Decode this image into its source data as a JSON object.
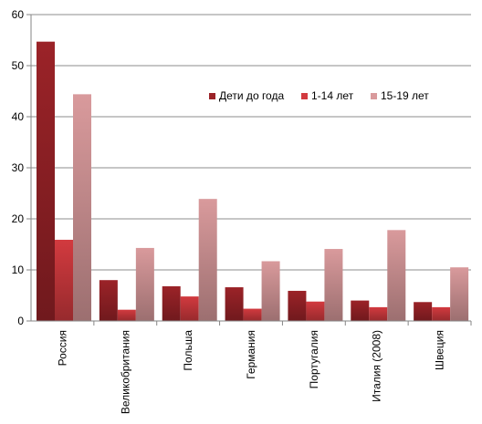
{
  "chart_data": {
    "type": "bar",
    "title": "",
    "xlabel": "",
    "ylabel": "",
    "ylim": [
      0,
      60
    ],
    "yticks": [
      0,
      10,
      20,
      30,
      40,
      50,
      60
    ],
    "grid": "horizontal",
    "legend_position": "top-right",
    "categories": [
      "Россия",
      "Великобритания",
      "Польша",
      "Германия",
      "Португалия",
      "Италия (2008)",
      "Швеция"
    ],
    "series": [
      {
        "name": "Дети до года",
        "values": [
          54.7,
          8.0,
          6.8,
          6.6,
          5.9,
          4.0,
          3.7
        ],
        "color": "#9b2328"
      },
      {
        "name": "1-14 лет",
        "values": [
          15.9,
          2.2,
          4.8,
          2.4,
          3.8,
          2.7,
          2.7
        ],
        "color": "#d23a3f"
      },
      {
        "name": "15-19 лет",
        "values": [
          44.4,
          14.3,
          23.9,
          11.7,
          14.1,
          17.8,
          10.5
        ],
        "color": "#d99a9c"
      }
    ]
  }
}
